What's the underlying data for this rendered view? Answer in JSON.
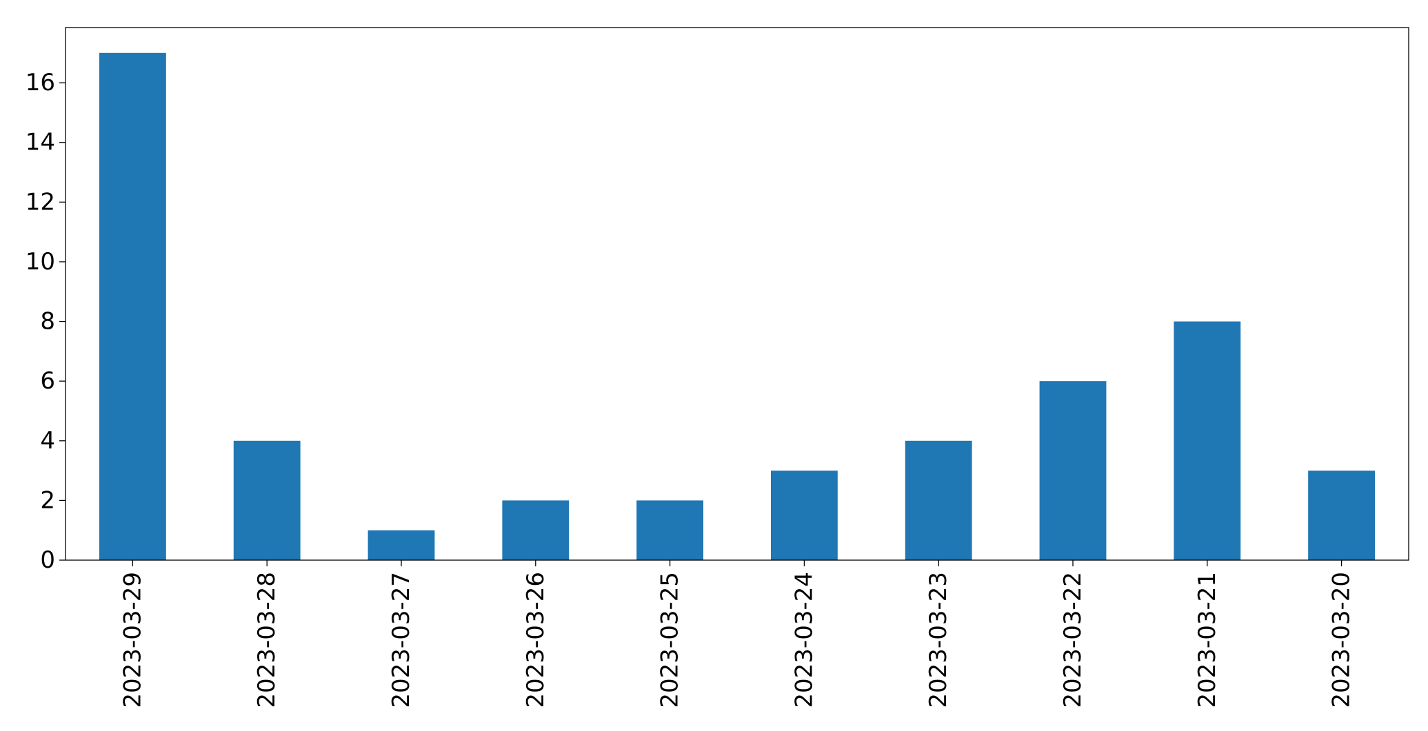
{
  "chart_data": {
    "type": "bar",
    "categories": [
      "2023-03-29",
      "2023-03-28",
      "2023-03-27",
      "2023-03-26",
      "2023-03-25",
      "2023-03-24",
      "2023-03-23",
      "2023-03-22",
      "2023-03-21",
      "2023-03-20"
    ],
    "values": [
      17,
      4,
      1,
      2,
      2,
      3,
      4,
      6,
      8,
      3
    ],
    "title": "",
    "xlabel": "",
    "ylabel": "",
    "ylim": [
      0,
      17.85
    ],
    "yticks": [
      0,
      2,
      4,
      6,
      8,
      10,
      12,
      14,
      16
    ],
    "ytick_labels": [
      "0",
      "2",
      "4",
      "6",
      "8",
      "10",
      "12",
      "14",
      "16"
    ],
    "bar_color": "#1f77b4",
    "grid": false,
    "legend": "none",
    "x_tick_rotation": "vertical"
  }
}
